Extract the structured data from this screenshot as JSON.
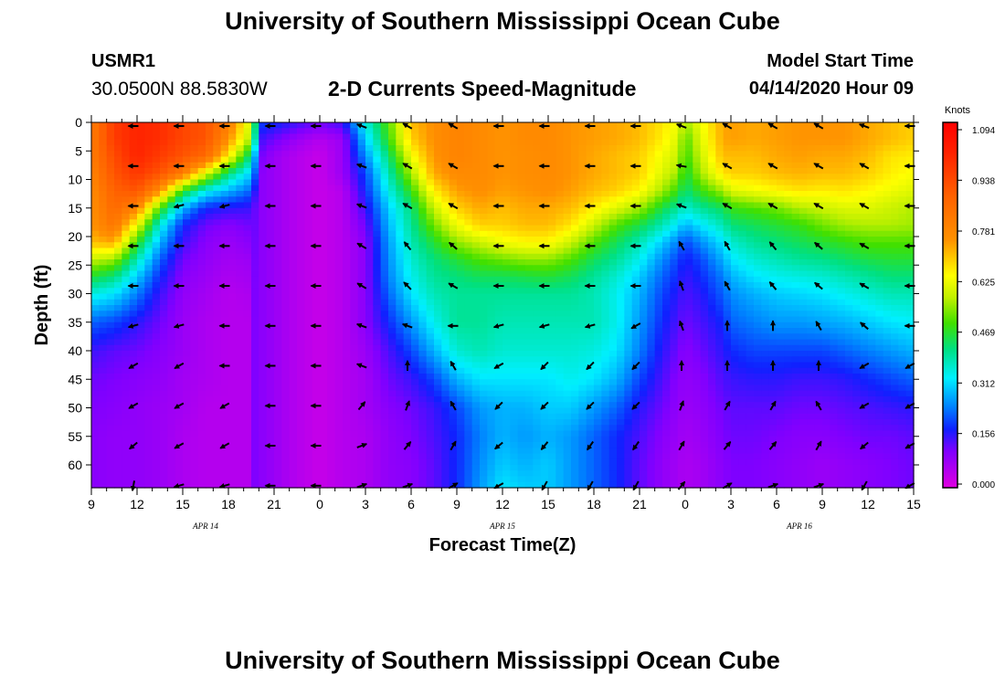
{
  "header": {
    "title": "University of Southern Mississippi Ocean Cube",
    "station_id": "USMR1",
    "station_coords": "30.0500N 88.5830W",
    "product_title": "2-D Currents Speed-Magnitude",
    "model_start_label": "Model Start Time",
    "model_start_value": "04/14/2020 Hour 09"
  },
  "footer": {
    "title": "University of Southern Mississippi Ocean Cube"
  },
  "chart_data": {
    "type": "heatmap",
    "title": "2-D Currents Speed-Magnitude",
    "xlabel": "Forecast Time(Z)",
    "ylabel": "Depth (ft)",
    "x_unit": "hours since 04/14/2020 09Z",
    "xlim": [
      0,
      54
    ],
    "ylim": [
      0,
      64
    ],
    "x_ticks": [
      0,
      3,
      6,
      9,
      12,
      15,
      18,
      21,
      24,
      27,
      30,
      33,
      36,
      39,
      42,
      45,
      48,
      51,
      54
    ],
    "x_tick_labels": [
      "9",
      "12",
      "15",
      "18",
      "21",
      "0",
      "3",
      "6",
      "9",
      "12",
      "15",
      "18",
      "21",
      "0",
      "3",
      "6",
      "9",
      "12",
      "15"
    ],
    "y_ticks": [
      0,
      5,
      10,
      15,
      20,
      25,
      30,
      35,
      40,
      45,
      50,
      55,
      60
    ],
    "y_tick_labels": [
      "0",
      "5",
      "10",
      "15",
      "20",
      "25",
      "30",
      "35",
      "40",
      "45",
      "50",
      "55",
      "60"
    ],
    "date_labels": [
      {
        "text": "APR 14",
        "x": 7.5
      },
      {
        "text": "APR 15",
        "x": 27
      },
      {
        "text": "APR 16",
        "x": 46.5
      }
    ],
    "colorbar": {
      "label": "Knots",
      "vmin": 0.0,
      "vmax": 1.094,
      "ticks": [
        "1.094",
        "0.938",
        "0.781",
        "0.625",
        "0.469",
        "0.312",
        "0.156",
        "0.000"
      ],
      "tick_values": [
        1.094,
        0.938,
        0.781,
        0.625,
        0.469,
        0.312,
        0.156,
        0.0
      ]
    },
    "speed_field": {
      "times_h": [
        0,
        1.5,
        3,
        4.5,
        6,
        7.5,
        9,
        10.5,
        10.8,
        11,
        12,
        13.5,
        15,
        16.5,
        18,
        19.5,
        21,
        22.5,
        24,
        25.5,
        27,
        28.5,
        30,
        31.5,
        33,
        34.5,
        36,
        37.5,
        38.5,
        39,
        40,
        41.5,
        42,
        43.5,
        45,
        46.5,
        48,
        49.5,
        51,
        52.5,
        54
      ],
      "depths_ft": [
        0,
        3,
        6,
        9,
        12,
        15,
        18,
        21,
        24,
        27,
        30,
        35,
        40,
        45,
        50,
        55,
        60,
        64
      ],
      "values_kn": [
        [
          0.8,
          0.95,
          1.0,
          0.98,
          0.93,
          0.9,
          0.8,
          0.58,
          0.4,
          0.2,
          0.18,
          0.15,
          0.12,
          0.15,
          0.35,
          0.5,
          0.7,
          0.75,
          0.78,
          0.76,
          0.74,
          0.76,
          0.76,
          0.74,
          0.73,
          0.72,
          0.7,
          0.66,
          0.62,
          0.55,
          0.62,
          0.72,
          0.73,
          0.72,
          0.73,
          0.74,
          0.74,
          0.74,
          0.72,
          0.7,
          0.68
        ],
        [
          0.8,
          0.95,
          1.0,
          0.98,
          0.93,
          0.9,
          0.75,
          0.55,
          0.35,
          0.15,
          0.12,
          0.08,
          0.05,
          0.08,
          0.3,
          0.48,
          0.68,
          0.75,
          0.78,
          0.76,
          0.74,
          0.76,
          0.76,
          0.74,
          0.73,
          0.72,
          0.7,
          0.65,
          0.6,
          0.5,
          0.6,
          0.72,
          0.73,
          0.72,
          0.73,
          0.74,
          0.74,
          0.74,
          0.72,
          0.7,
          0.68
        ],
        [
          0.8,
          0.92,
          1.0,
          0.95,
          0.9,
          0.85,
          0.65,
          0.4,
          0.25,
          0.12,
          0.08,
          0.05,
          0.03,
          0.08,
          0.25,
          0.42,
          0.62,
          0.74,
          0.78,
          0.76,
          0.74,
          0.75,
          0.76,
          0.74,
          0.72,
          0.7,
          0.68,
          0.62,
          0.58,
          0.48,
          0.58,
          0.7,
          0.7,
          0.7,
          0.72,
          0.73,
          0.72,
          0.72,
          0.7,
          0.66,
          0.65
        ],
        [
          0.78,
          0.9,
          0.96,
          0.9,
          0.8,
          0.6,
          0.42,
          0.3,
          0.2,
          0.1,
          0.08,
          0.05,
          0.03,
          0.08,
          0.2,
          0.38,
          0.55,
          0.72,
          0.76,
          0.76,
          0.74,
          0.75,
          0.76,
          0.74,
          0.72,
          0.7,
          0.68,
          0.6,
          0.55,
          0.45,
          0.55,
          0.66,
          0.68,
          0.68,
          0.7,
          0.71,
          0.7,
          0.7,
          0.68,
          0.65,
          0.63
        ],
        [
          0.76,
          0.87,
          0.9,
          0.75,
          0.48,
          0.34,
          0.28,
          0.22,
          0.15,
          0.1,
          0.08,
          0.05,
          0.03,
          0.05,
          0.18,
          0.34,
          0.48,
          0.65,
          0.73,
          0.75,
          0.73,
          0.74,
          0.75,
          0.73,
          0.7,
          0.68,
          0.64,
          0.55,
          0.48,
          0.42,
          0.48,
          0.55,
          0.6,
          0.62,
          0.64,
          0.66,
          0.65,
          0.66,
          0.64,
          0.62,
          0.6
        ],
        [
          0.75,
          0.85,
          0.78,
          0.5,
          0.28,
          0.18,
          0.16,
          0.15,
          0.12,
          0.1,
          0.08,
          0.05,
          0.03,
          0.05,
          0.15,
          0.3,
          0.42,
          0.58,
          0.68,
          0.72,
          0.7,
          0.72,
          0.72,
          0.7,
          0.65,
          0.6,
          0.55,
          0.45,
          0.4,
          0.36,
          0.4,
          0.44,
          0.48,
          0.5,
          0.52,
          0.56,
          0.58,
          0.6,
          0.6,
          0.58,
          0.56
        ],
        [
          0.74,
          0.82,
          0.62,
          0.35,
          0.18,
          0.12,
          0.1,
          0.12,
          0.12,
          0.1,
          0.08,
          0.05,
          0.03,
          0.05,
          0.12,
          0.28,
          0.4,
          0.52,
          0.62,
          0.68,
          0.68,
          0.7,
          0.7,
          0.66,
          0.58,
          0.5,
          0.45,
          0.38,
          0.32,
          0.28,
          0.32,
          0.38,
          0.42,
          0.44,
          0.46,
          0.48,
          0.52,
          0.55,
          0.56,
          0.56,
          0.55
        ],
        [
          0.7,
          0.72,
          0.48,
          0.28,
          0.15,
          0.1,
          0.08,
          0.1,
          0.12,
          0.1,
          0.08,
          0.05,
          0.03,
          0.05,
          0.1,
          0.26,
          0.38,
          0.46,
          0.54,
          0.58,
          0.62,
          0.64,
          0.64,
          0.58,
          0.5,
          0.44,
          0.38,
          0.3,
          0.24,
          0.2,
          0.25,
          0.32,
          0.36,
          0.4,
          0.42,
          0.44,
          0.46,
          0.48,
          0.5,
          0.5,
          0.5
        ],
        [
          0.58,
          0.55,
          0.38,
          0.22,
          0.12,
          0.09,
          0.07,
          0.08,
          0.12,
          0.1,
          0.08,
          0.05,
          0.03,
          0.05,
          0.1,
          0.25,
          0.36,
          0.42,
          0.46,
          0.5,
          0.52,
          0.54,
          0.54,
          0.5,
          0.44,
          0.4,
          0.34,
          0.25,
          0.2,
          0.17,
          0.2,
          0.28,
          0.32,
          0.36,
          0.38,
          0.4,
          0.41,
          0.43,
          0.45,
          0.46,
          0.46
        ],
        [
          0.46,
          0.42,
          0.3,
          0.18,
          0.1,
          0.08,
          0.06,
          0.07,
          0.12,
          0.1,
          0.08,
          0.05,
          0.03,
          0.05,
          0.1,
          0.24,
          0.34,
          0.4,
          0.42,
          0.44,
          0.44,
          0.45,
          0.46,
          0.44,
          0.4,
          0.36,
          0.3,
          0.22,
          0.18,
          0.15,
          0.18,
          0.24,
          0.28,
          0.32,
          0.34,
          0.35,
          0.36,
          0.38,
          0.4,
          0.42,
          0.42
        ],
        [
          0.35,
          0.32,
          0.24,
          0.15,
          0.09,
          0.07,
          0.05,
          0.06,
          0.12,
          0.1,
          0.08,
          0.05,
          0.03,
          0.05,
          0.1,
          0.22,
          0.32,
          0.38,
          0.4,
          0.4,
          0.4,
          0.4,
          0.4,
          0.4,
          0.38,
          0.34,
          0.28,
          0.2,
          0.16,
          0.14,
          0.16,
          0.22,
          0.25,
          0.28,
          0.3,
          0.31,
          0.32,
          0.34,
          0.36,
          0.38,
          0.38
        ],
        [
          0.22,
          0.2,
          0.16,
          0.12,
          0.08,
          0.06,
          0.05,
          0.05,
          0.12,
          0.1,
          0.08,
          0.05,
          0.03,
          0.05,
          0.1,
          0.18,
          0.26,
          0.34,
          0.4,
          0.4,
          0.38,
          0.38,
          0.38,
          0.38,
          0.38,
          0.34,
          0.26,
          0.18,
          0.14,
          0.12,
          0.14,
          0.18,
          0.22,
          0.24,
          0.26,
          0.26,
          0.27,
          0.28,
          0.3,
          0.32,
          0.33
        ],
        [
          0.15,
          0.13,
          0.12,
          0.1,
          0.08,
          0.06,
          0.05,
          0.05,
          0.12,
          0.1,
          0.08,
          0.05,
          0.03,
          0.05,
          0.08,
          0.14,
          0.2,
          0.28,
          0.36,
          0.38,
          0.36,
          0.36,
          0.36,
          0.36,
          0.35,
          0.32,
          0.24,
          0.16,
          0.12,
          0.1,
          0.12,
          0.16,
          0.18,
          0.2,
          0.2,
          0.2,
          0.2,
          0.22,
          0.24,
          0.26,
          0.28
        ],
        [
          0.12,
          0.11,
          0.1,
          0.09,
          0.07,
          0.06,
          0.05,
          0.05,
          0.12,
          0.1,
          0.08,
          0.05,
          0.03,
          0.05,
          0.07,
          0.12,
          0.15,
          0.2,
          0.28,
          0.32,
          0.32,
          0.32,
          0.32,
          0.34,
          0.32,
          0.28,
          0.2,
          0.14,
          0.1,
          0.09,
          0.1,
          0.14,
          0.15,
          0.16,
          0.16,
          0.15,
          0.15,
          0.16,
          0.18,
          0.2,
          0.22
        ],
        [
          0.11,
          0.1,
          0.09,
          0.08,
          0.07,
          0.05,
          0.05,
          0.05,
          0.12,
          0.1,
          0.08,
          0.05,
          0.03,
          0.05,
          0.07,
          0.1,
          0.12,
          0.15,
          0.2,
          0.26,
          0.28,
          0.28,
          0.3,
          0.3,
          0.26,
          0.22,
          0.16,
          0.12,
          0.09,
          0.08,
          0.09,
          0.12,
          0.13,
          0.13,
          0.13,
          0.12,
          0.12,
          0.13,
          0.14,
          0.15,
          0.16
        ],
        [
          0.1,
          0.09,
          0.09,
          0.08,
          0.06,
          0.05,
          0.05,
          0.05,
          0.12,
          0.1,
          0.08,
          0.05,
          0.03,
          0.05,
          0.06,
          0.09,
          0.11,
          0.14,
          0.18,
          0.24,
          0.28,
          0.26,
          0.28,
          0.26,
          0.22,
          0.18,
          0.14,
          0.1,
          0.08,
          0.07,
          0.08,
          0.11,
          0.12,
          0.12,
          0.11,
          0.1,
          0.1,
          0.11,
          0.12,
          0.12,
          0.13
        ],
        [
          0.1,
          0.09,
          0.09,
          0.08,
          0.06,
          0.05,
          0.05,
          0.05,
          0.12,
          0.1,
          0.08,
          0.05,
          0.03,
          0.05,
          0.06,
          0.09,
          0.1,
          0.13,
          0.18,
          0.25,
          0.3,
          0.28,
          0.3,
          0.26,
          0.22,
          0.18,
          0.13,
          0.09,
          0.07,
          0.06,
          0.07,
          0.1,
          0.11,
          0.11,
          0.1,
          0.09,
          0.08,
          0.09,
          0.1,
          0.11,
          0.12
        ],
        [
          0.1,
          0.09,
          0.09,
          0.08,
          0.06,
          0.05,
          0.05,
          0.05,
          0.12,
          0.1,
          0.08,
          0.05,
          0.03,
          0.05,
          0.06,
          0.09,
          0.1,
          0.13,
          0.18,
          0.26,
          0.32,
          0.3,
          0.3,
          0.26,
          0.22,
          0.18,
          0.13,
          0.09,
          0.07,
          0.06,
          0.07,
          0.1,
          0.11,
          0.11,
          0.1,
          0.09,
          0.08,
          0.09,
          0.1,
          0.11,
          0.12
        ]
      ]
    },
    "vector_field": {
      "times_h": [
        3,
        6,
        9,
        12,
        15,
        18,
        21,
        24,
        27,
        30,
        33,
        36,
        39,
        42,
        45,
        48,
        51,
        54
      ],
      "depths_ft": [
        0,
        7,
        14,
        21,
        28,
        35,
        42,
        49,
        56,
        63
      ],
      "directions_deg": [
        [
          180,
          180,
          180,
          180,
          180,
          200,
          210,
          210,
          180,
          180,
          180,
          180,
          200,
          210,
          210,
          210,
          200,
          180
        ],
        [
          180,
          180,
          180,
          180,
          180,
          200,
          210,
          210,
          180,
          180,
          180,
          180,
          190,
          210,
          210,
          210,
          210,
          180
        ],
        [
          180,
          165,
          165,
          180,
          180,
          200,
          210,
          210,
          180,
          180,
          180,
          180,
          200,
          210,
          210,
          210,
          210,
          180
        ],
        [
          180,
          180,
          180,
          180,
          180,
          210,
          230,
          220,
          180,
          180,
          180,
          180,
          240,
          240,
          230,
          220,
          210,
          180
        ],
        [
          180,
          180,
          180,
          180,
          180,
          210,
          225,
          210,
          180,
          180,
          180,
          180,
          250,
          240,
          230,
          220,
          210,
          180
        ],
        [
          165,
          165,
          180,
          180,
          180,
          200,
          200,
          180,
          165,
          165,
          165,
          150,
          250,
          270,
          270,
          240,
          220,
          180
        ],
        [
          150,
          150,
          180,
          180,
          180,
          200,
          270,
          240,
          150,
          135,
          135,
          135,
          270,
          270,
          270,
          270,
          150,
          150
        ],
        [
          150,
          150,
          150,
          180,
          180,
          310,
          290,
          240,
          135,
          135,
          135,
          135,
          290,
          300,
          300,
          240,
          150,
          150
        ],
        [
          140,
          150,
          150,
          180,
          180,
          340,
          310,
          300,
          140,
          130,
          125,
          125,
          300,
          310,
          310,
          300,
          140,
          150
        ],
        [
          100,
          165,
          165,
          180,
          180,
          340,
          340,
          330,
          150,
          120,
          120,
          120,
          310,
          330,
          340,
          340,
          120,
          150
        ]
      ]
    }
  }
}
